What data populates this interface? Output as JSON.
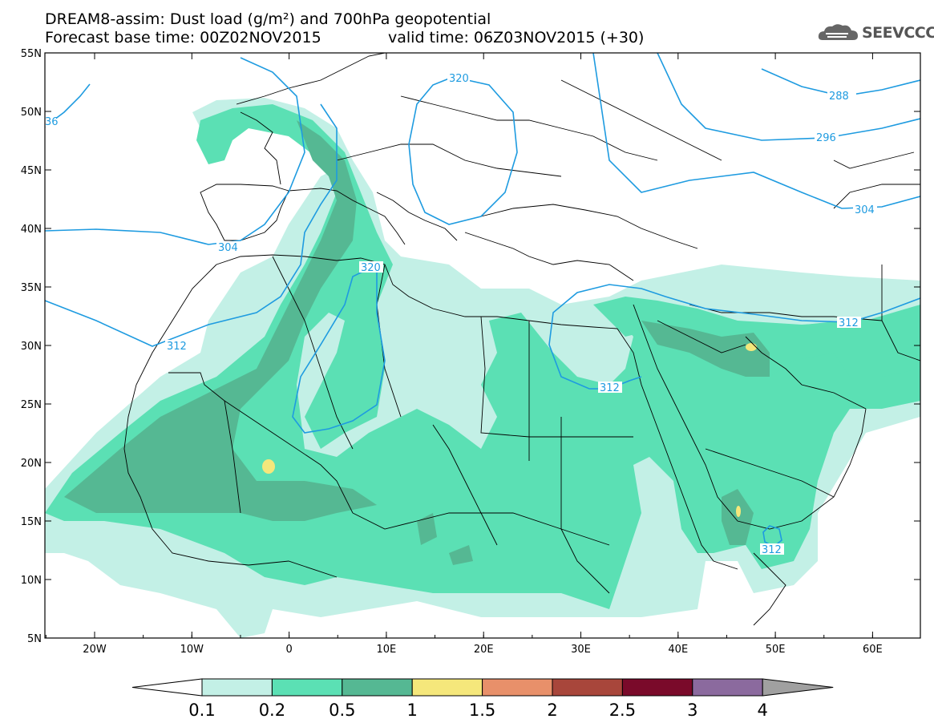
{
  "title": {
    "line1": "DREAM8-assim: Dust load (g/m²) and 700hPa geopotential",
    "line2_left": "Forecast base time: 00Z02NOV2015",
    "line2_right": "valid time: 06Z03NOV2015 (+30)"
  },
  "logo": {
    "text": "SEEVCCC",
    "icon": "cloud-icon"
  },
  "map": {
    "lon_ticks": [
      "20W",
      "10W",
      "0",
      "10E",
      "20E",
      "30E",
      "40E",
      "50E",
      "60E"
    ],
    "lat_ticks": [
      "55N",
      "50N",
      "45N",
      "40N",
      "35N",
      "30N",
      "25N",
      "20N",
      "15N",
      "10N",
      "5N"
    ],
    "contour_labels": [
      "36",
      "320",
      "288",
      "296",
      "304",
      "304",
      "320",
      "312",
      "312",
      "312",
      "312"
    ]
  },
  "colorbar": {
    "levels": [
      "0.1",
      "0.2",
      "0.5",
      "1",
      "1.5",
      "2",
      "2.5",
      "3",
      "4"
    ],
    "colors": [
      "#ffffff",
      "#c3f0e6",
      "#5be0b4",
      "#55b893",
      "#f5e77b",
      "#e8906a",
      "#a8463b",
      "#7a0a2a",
      "#8b6a9e",
      "#a0a0a0"
    ]
  },
  "style": {
    "dust_0_1": "#c3f0e6",
    "dust_0_2": "#5be0b4",
    "dust_0_5": "#55b893",
    "dust_1": "#f5e77b",
    "contour_color": "#1e9be0",
    "border_color": "#000000"
  }
}
